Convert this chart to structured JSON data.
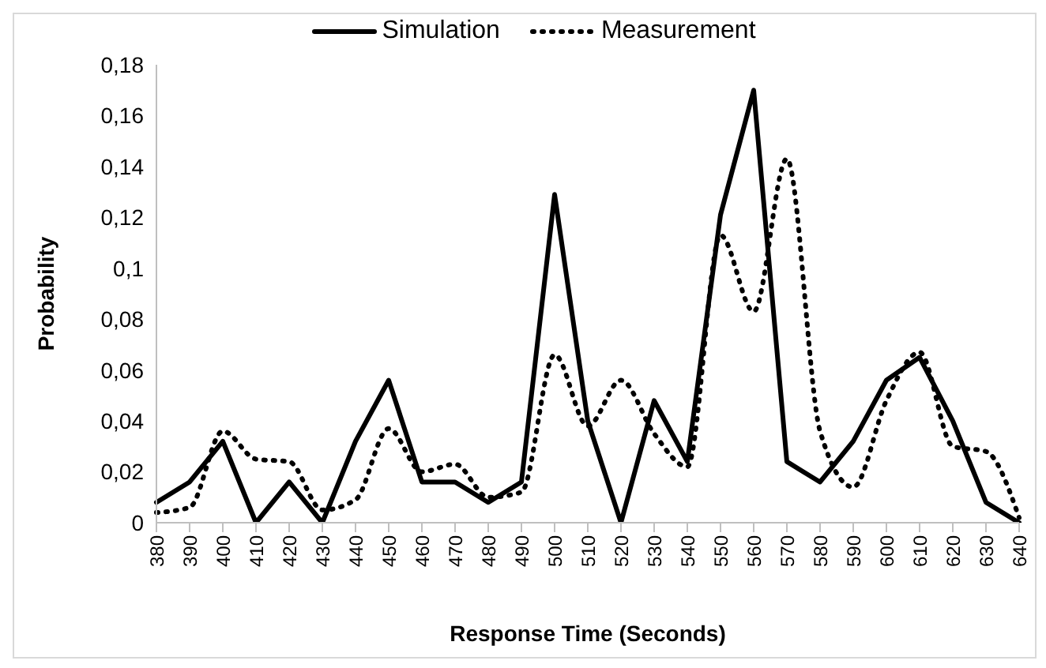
{
  "chart_data": {
    "type": "line",
    "xlabel": "Response Time (Seconds)",
    "ylabel": "Probability",
    "categories": [
      "380",
      "390",
      "400",
      "410",
      "420",
      "430",
      "440",
      "450",
      "460",
      "470",
      "480",
      "490",
      "500",
      "510",
      "520",
      "530",
      "540",
      "550",
      "560",
      "570",
      "580",
      "590",
      "600",
      "610",
      "620",
      "630",
      "640"
    ],
    "series": [
      {
        "name": "Simulation",
        "color": "#000000",
        "line_style": "solid",
        "values": [
          0.008,
          0.016,
          0.032,
          0,
          0.016,
          0,
          0.032,
          0.056,
          0.016,
          0.016,
          0.008,
          0.016,
          0.129,
          0.04,
          0,
          0.048,
          0.024,
          0.121,
          0.17,
          0.024,
          0.016,
          0.032,
          0.056,
          0.065,
          0.04,
          0.008,
          0
        ]
      },
      {
        "name": "Measurement",
        "color": "#000000",
        "line_style": "dotted",
        "values": [
          0.004,
          0.006,
          0.036,
          0.025,
          0.024,
          0.005,
          0.009,
          0.037,
          0.02,
          0.023,
          0.01,
          0.012,
          0.066,
          0.038,
          0.056,
          0.035,
          0.022,
          0.113,
          0.083,
          0.143,
          0.036,
          0.014,
          0.048,
          0.067,
          0.03,
          0.028,
          0.002
        ]
      }
    ],
    "ylim": [
      0,
      0.18
    ],
    "yticks": [
      {
        "value": 0,
        "label": "0"
      },
      {
        "value": 0.02,
        "label": "0,02"
      },
      {
        "value": 0.04,
        "label": "0,04"
      },
      {
        "value": 0.06,
        "label": "0,06"
      },
      {
        "value": 0.08,
        "label": "0,08"
      },
      {
        "value": 0.1,
        "label": "0,1"
      },
      {
        "value": 0.12,
        "label": "0,12"
      },
      {
        "value": 0.14,
        "label": "0,14"
      },
      {
        "value": 0.16,
        "label": "0,16"
      },
      {
        "value": 0.18,
        "label": "0,18"
      }
    ],
    "grid": false,
    "legend": "top",
    "marker": "none"
  }
}
